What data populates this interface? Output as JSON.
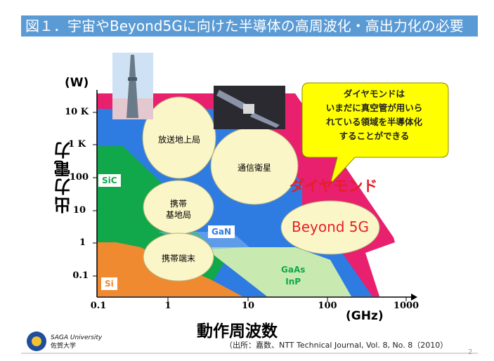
{
  "title": "図１．宇宙やBeyond5Gに向けた半導体の高周波化・高出力化の必要",
  "chart": {
    "y_axis": {
      "unit": "(W)",
      "label": "出力電力",
      "ticks": [
        "10 K",
        "1 K",
        "100",
        "10",
        "1",
        "0.1"
      ]
    },
    "x_axis": {
      "unit": "(GHz)",
      "label": "動作周波数",
      "ticks": [
        "0.1",
        "1",
        "10",
        "100",
        "1000"
      ]
    },
    "regions": {
      "sic": "SiC",
      "si": "Si",
      "gan": "GaN",
      "gaas": "GaAs\nInP",
      "diamond": "ダイヤモンド"
    },
    "applications": {
      "broadcast": "放送地上局",
      "satellite": "通信衛星",
      "base_station": "携帯\n基地局",
      "terminal": "携帯端末",
      "beyond5g": "Beyond 5G"
    },
    "callout": "ダイヤモンドは\nいまだに真空管が用いら\nれている領域を半導体化\nすることができる"
  },
  "footer": {
    "university_en": "SAGA University",
    "university_ja": "佐賀大学",
    "source": "（出所：嘉数、NTT Technical Journal, Vol. 8, No. 8（2010）",
    "page": "2"
  },
  "colors": {
    "title_bg": "#5b9bd5",
    "magenta": "#e8206e",
    "green": "#10a84a",
    "blue": "#2e7be2",
    "orange": "#f08a30",
    "light_green": "#c8eab0",
    "ellipse": "#fbf6c8",
    "callout": "#ffff00",
    "diamond_text": "#e61e28"
  }
}
